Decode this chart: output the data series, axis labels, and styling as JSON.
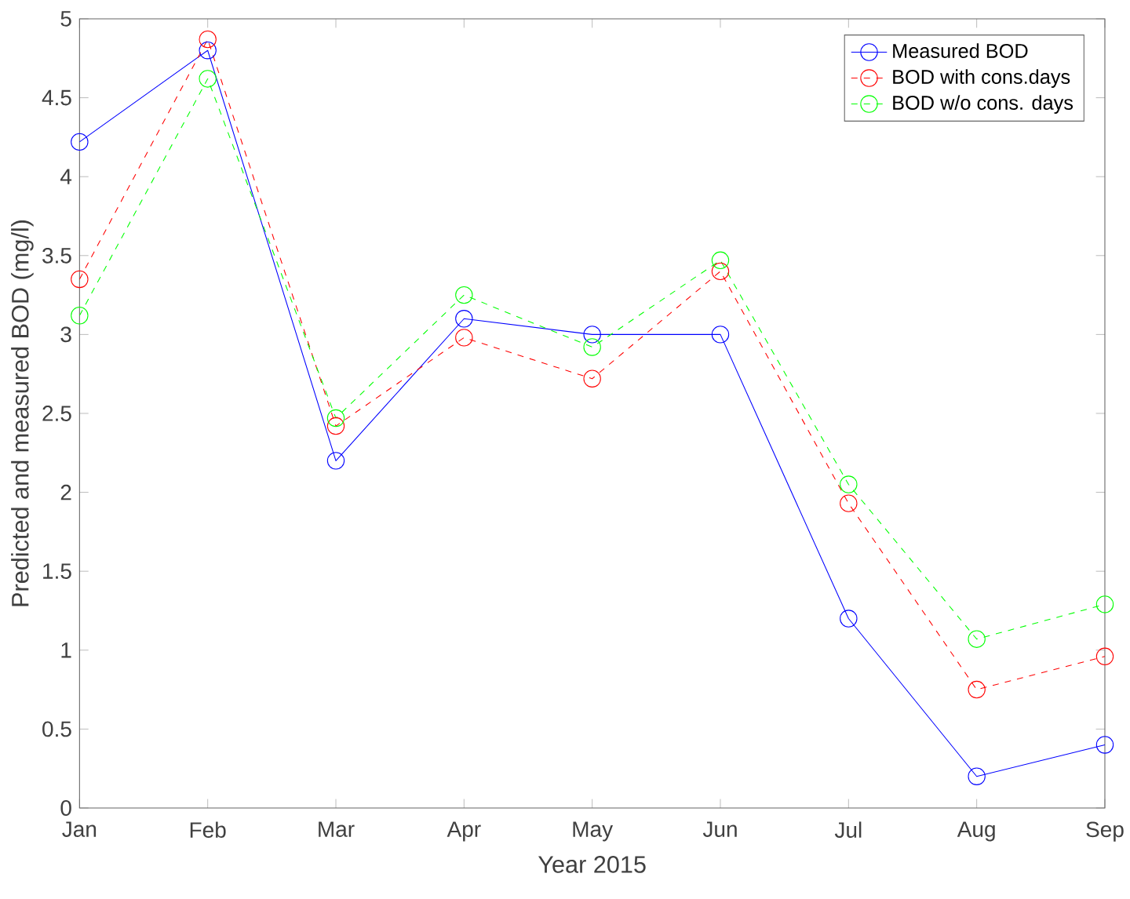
{
  "chart_data": {
    "type": "line",
    "xlabel": "Year 2015",
    "ylabel": "Predicted and measured BOD (mg/l)",
    "categories": [
      "Jan",
      "Feb",
      "Mar",
      "Apr",
      "May",
      "Jun",
      "Jul",
      "Aug",
      "Sep"
    ],
    "series": [
      {
        "name": "Measured BOD",
        "color": "#0000ff",
        "line_style": "solid",
        "values": [
          4.22,
          4.8,
          2.2,
          3.1,
          3.0,
          3.0,
          1.2,
          0.2,
          0.4
        ]
      },
      {
        "name": "BOD with cons.days",
        "color": "#ff0000",
        "line_style": "dashed",
        "values": [
          3.35,
          4.87,
          2.42,
          2.98,
          2.72,
          3.4,
          1.93,
          0.75,
          0.96
        ]
      },
      {
        "name": "BOD w/o cons. days",
        "color": "#00ff00",
        "line_style": "dashed",
        "values": [
          3.12,
          4.62,
          2.47,
          3.25,
          2.92,
          3.47,
          2.05,
          1.07,
          1.29
        ]
      }
    ],
    "ylim": [
      0,
      5
    ],
    "yticks": [
      0,
      0.5,
      1,
      1.5,
      2,
      2.5,
      3,
      3.5,
      4,
      4.5,
      5
    ],
    "marker": "circle",
    "legend": "top right",
    "grid": false
  }
}
